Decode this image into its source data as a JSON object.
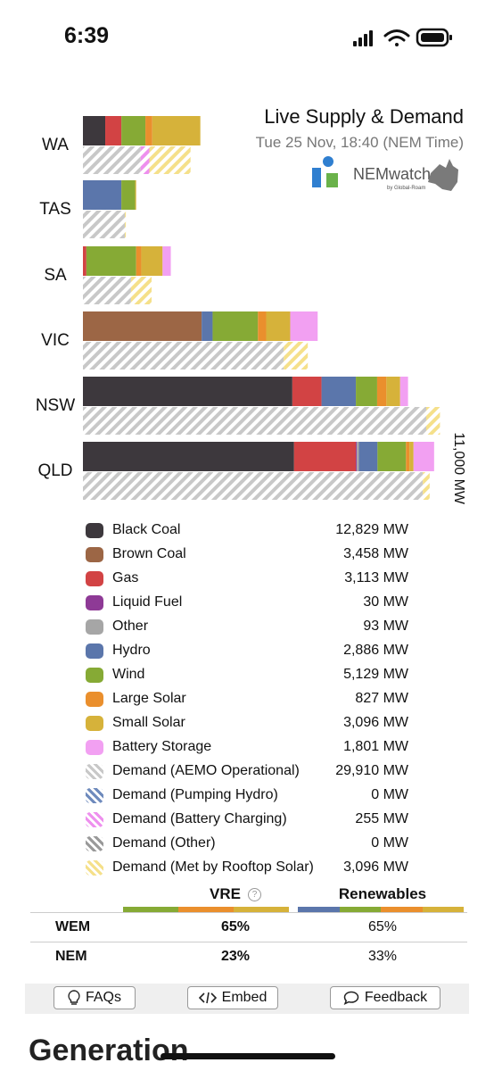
{
  "status": {
    "time": "6:39"
  },
  "header": {
    "title": "Live Supply & Demand",
    "subtitle": "Tue 25 Nov, 18:40 (NEM Time)",
    "logo_text": "NEMwatch",
    "logo_sub": "by Global-Roam"
  },
  "colors": {
    "Black Coal": "#3d383d",
    "Brown Coal": "#9c6645",
    "Gas": "#d24344",
    "Liquid Fuel": "#8e3a96",
    "Other": "#a6a6a6",
    "Hydro": "#5b76ab",
    "Wind": "#86aa35",
    "Large Solar": "#ea8f2d",
    "Small Solar": "#d6b23a",
    "Battery Storage": "#f2a0f2",
    "Demand (AEMO Operational)": "#c8c8c8",
    "Demand (Pumping Hydro)": "#6f8bbd",
    "Demand (Battery Charging)": "#ee90ee",
    "Demand (Other)": "#9a9a9a",
    "Demand (Met by Rooftop Solar)": "#f5e08a"
  },
  "chart_data": {
    "type": "bar",
    "stacked": true,
    "orientation": "horizontal",
    "scale_label": "11,000 MW",
    "scale_mw": 11000,
    "categories": [
      "WA",
      "TAS",
      "SA",
      "VIC",
      "NSW",
      "QLD"
    ],
    "supply": {
      "WA": [
        [
          "Black Coal",
          650
        ],
        [
          "Gas",
          470
        ],
        [
          "Wind",
          700
        ],
        [
          "Large Solar",
          200
        ],
        [
          "Small Solar",
          1400
        ]
      ],
      "TAS": [
        [
          "Hydro",
          1120
        ],
        [
          "Wind",
          400
        ],
        [
          "Small Solar",
          30
        ]
      ],
      "SA": [
        [
          "Gas",
          100
        ],
        [
          "Wind",
          1450
        ],
        [
          "Large Solar",
          150
        ],
        [
          "Small Solar",
          620
        ],
        [
          "Battery Storage",
          240
        ]
      ],
      "VIC": [
        [
          "Brown Coal",
          3458
        ],
        [
          "Hydro",
          320
        ],
        [
          "Wind",
          1320
        ],
        [
          "Large Solar",
          240
        ],
        [
          "Small Solar",
          700
        ],
        [
          "Battery Storage",
          800
        ]
      ],
      "NSW": [
        [
          "Black Coal",
          6100
        ],
        [
          "Gas",
          850
        ],
        [
          "Hydro",
          1000
        ],
        [
          "Wind",
          620
        ],
        [
          "Large Solar",
          270
        ],
        [
          "Small Solar",
          400
        ],
        [
          "Battery Storage",
          230
        ]
      ],
      "QLD": [
        [
          "Black Coal",
          6150
        ],
        [
          "Gas",
          1800
        ],
        [
          "Liquid Fuel",
          30
        ],
        [
          "Other",
          60
        ],
        [
          "Hydro",
          540
        ],
        [
          "Wind",
          830
        ],
        [
          "Large Solar",
          100
        ],
        [
          "Small Solar",
          120
        ],
        [
          "Battery Storage",
          600
        ]
      ]
    },
    "demand": {
      "WA": [
        [
          "Demand (AEMO Operational)",
          1680
        ],
        [
          "Demand (Battery Charging)",
          255
        ],
        [
          "Demand (Met by Rooftop Solar)",
          1200
        ]
      ],
      "TAS": [
        [
          "Demand (AEMO Operational)",
          1220
        ],
        [
          "Demand (Met by Rooftop Solar)",
          30
        ]
      ],
      "SA": [
        [
          "Demand (AEMO Operational)",
          1400
        ],
        [
          "Demand (Met by Rooftop Solar)",
          600
        ]
      ],
      "VIC": [
        [
          "Demand (AEMO Operational)",
          5850
        ],
        [
          "Demand (Met by Rooftop Solar)",
          700
        ]
      ],
      "NSW": [
        [
          "Demand (AEMO Operational)",
          10000
        ],
        [
          "Demand (Met by Rooftop Solar)",
          400
        ]
      ],
      "QLD": [
        [
          "Demand (AEMO Operational)",
          9900
        ],
        [
          "Demand (Met by Rooftop Solar)",
          200
        ]
      ]
    }
  },
  "legend": [
    {
      "label": "Black Coal",
      "value": "12,829 MW"
    },
    {
      "label": "Brown Coal",
      "value": "3,458 MW"
    },
    {
      "label": "Gas",
      "value": "3,113 MW"
    },
    {
      "label": "Liquid Fuel",
      "value": "30 MW"
    },
    {
      "label": "Other",
      "value": "93 MW"
    },
    {
      "label": "Hydro",
      "value": "2,886 MW"
    },
    {
      "label": "Wind",
      "value": "5,129 MW"
    },
    {
      "label": "Large Solar",
      "value": "827 MW"
    },
    {
      "label": "Small Solar",
      "value": "3,096 MW"
    },
    {
      "label": "Battery Storage",
      "value": "1,801 MW"
    },
    {
      "label": "Demand (AEMO Operational)",
      "value": "29,910 MW"
    },
    {
      "label": "Demand (Pumping Hydro)",
      "value": "0 MW"
    },
    {
      "label": "Demand (Battery Charging)",
      "value": "255 MW"
    },
    {
      "label": "Demand (Other)",
      "value": "0 MW"
    },
    {
      "label": "Demand (Met by Rooftop Solar)",
      "value": "3,096 MW"
    }
  ],
  "vre_table": {
    "col_vre": "VRE",
    "col_renewables": "Renewables",
    "help_glyph": "?",
    "rows": [
      {
        "region": "WEM",
        "vre": "65%",
        "renewables": "65%"
      },
      {
        "region": "NEM",
        "vre": "23%",
        "renewables": "33%"
      }
    ]
  },
  "buttons": {
    "faqs": "FAQs",
    "embed": "Embed",
    "feedback": "Feedback"
  },
  "section_title": "Generation"
}
